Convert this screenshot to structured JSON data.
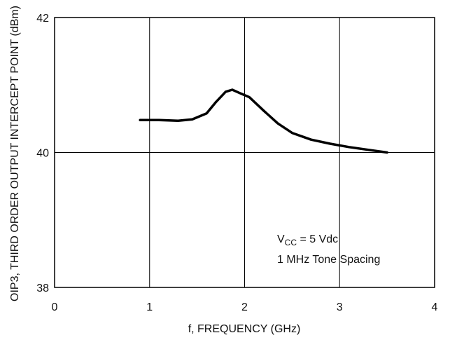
{
  "chart_data": {
    "type": "line",
    "xlabel": "f, FREQUENCY (GHz)",
    "ylabel": "OIP3, THIRD ORDER OUTPUT INTERCEPT POINT (dBm)",
    "xlim": [
      0,
      4
    ],
    "ylim": [
      38,
      42
    ],
    "x_ticks": [
      0,
      1,
      2,
      3,
      4
    ],
    "y_ticks": [
      38,
      40,
      42
    ],
    "grid": true,
    "series": [
      {
        "x": [
          0.9,
          1.1,
          1.3,
          1.45,
          1.6,
          1.7,
          1.8,
          1.87,
          1.95,
          2.05,
          2.2,
          2.35,
          2.5,
          2.7,
          2.9,
          3.1,
          3.3,
          3.5
        ],
        "y": [
          40.48,
          40.48,
          40.47,
          40.49,
          40.58,
          40.75,
          40.9,
          40.93,
          40.88,
          40.82,
          40.62,
          40.43,
          40.29,
          40.19,
          40.13,
          40.08,
          40.04,
          40.0
        ],
        "color": "#000000"
      }
    ],
    "annotations": {
      "vcc_prefix": "V",
      "vcc_subscript": "CC",
      "vcc_value": " = 5 Vdc",
      "tone_spacing": "1 MHz Tone Spacing"
    }
  }
}
